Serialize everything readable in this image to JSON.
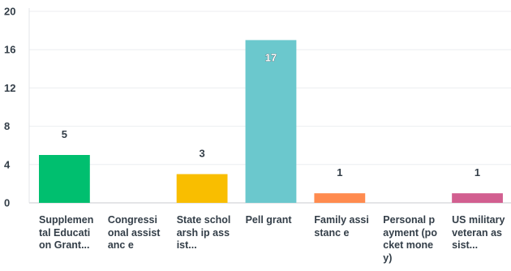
{
  "chart_data": {
    "type": "bar",
    "categories": [
      "Supplemental Education Grant...",
      "Congressional assistance",
      "State scholarship assist...",
      "Pell grant",
      "Family assistance",
      "Personal payment (pocket money)",
      "US military veteran assist..."
    ],
    "category_labels": [
      "Supplemen tal Education Grant...",
      "Congressi onal assistanc e",
      "State scholarsh ip assist...",
      "Pell grant",
      "Family assistanc e",
      "Personal payment (pocket money)",
      "US military veteran assist..."
    ],
    "values": [
      5,
      0,
      3,
      17,
      1,
      0,
      1
    ],
    "value_labels": [
      "5",
      "",
      "3",
      "17",
      "1",
      "",
      "1"
    ],
    "colors": [
      "#00bf6f",
      "#507cb6",
      "#f9be00",
      "#6bc8cd",
      "#ff8b4f",
      "#7f8fa9",
      "#d25f90"
    ],
    "yticks": [
      "0",
      "4",
      "8",
      "12",
      "16",
      "20"
    ],
    "ylim": [
      0,
      20
    ],
    "grid": true
  }
}
